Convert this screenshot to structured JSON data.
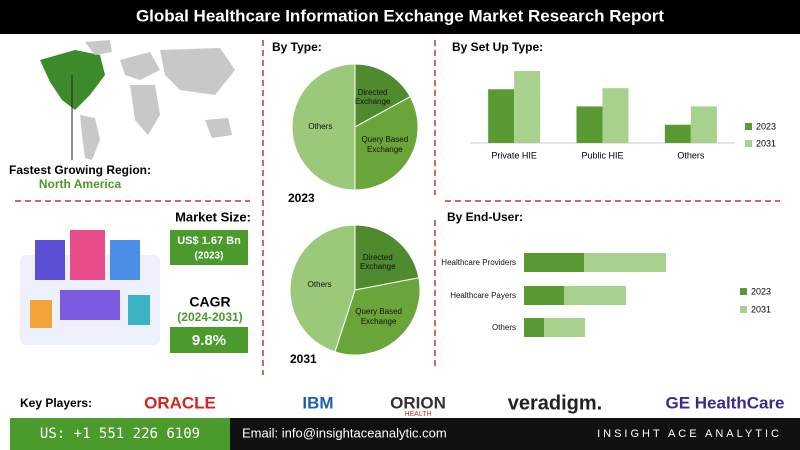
{
  "header": {
    "title": "Global Healthcare Information Exchange Market Research Report"
  },
  "region": {
    "label": "Fastest Growing Region:",
    "value": "North America"
  },
  "market_size": {
    "label": "Market Size:",
    "value": "US$ 1.67 Bn",
    "year": "(2023)"
  },
  "cagr": {
    "label": "CAGR",
    "period": "(2024-2031)",
    "value": "9.8%"
  },
  "key_players": {
    "label": "Key Players:",
    "logos": [
      {
        "name": "ORACLE"
      },
      {
        "name": "IBM"
      },
      {
        "name": "ORION",
        "sub": "HEALTH"
      },
      {
        "name": "veradigm."
      },
      {
        "name": "GE HealthCare"
      }
    ]
  },
  "footer": {
    "phone": "US: +1 551 226 6109",
    "email": "Email: info@insightaceanalytic.com",
    "brand": "INSIGHT ACE ANALYTIC"
  },
  "chart_data": [
    {
      "type": "pie",
      "title": "By Type:",
      "subtitle": "2023",
      "categories": [
        "Directed Exchange",
        "Query Based Exchange",
        "Others"
      ],
      "values": [
        17,
        33,
        50
      ],
      "colors": [
        "#4f8a2e",
        "#6aa53a",
        "#9cc87a"
      ]
    },
    {
      "type": "pie",
      "subtitle": "2031",
      "categories": [
        "Directed Exchange",
        "Query Based Exchange",
        "Others"
      ],
      "values": [
        22,
        33,
        45
      ],
      "colors": [
        "#4f8a2e",
        "#6aa53a",
        "#9cc87a"
      ]
    },
    {
      "type": "bar",
      "title": "By Set Up Type:",
      "categories": [
        "Private HIE",
        "Public HIE",
        "Others"
      ],
      "ylim": [
        0,
        70
      ],
      "legend": "right",
      "series": [
        {
          "name": "2023",
          "color": "#5a9a32",
          "values": [
            47,
            32,
            16
          ]
        },
        {
          "name": "2031",
          "color": "#a8d18d",
          "values": [
            63,
            48,
            32
          ]
        }
      ]
    },
    {
      "type": "stacked_barh",
      "title": "By End-User:",
      "categories": [
        "Healthcare Providers",
        "Healthcare Payers",
        "Others"
      ],
      "xlim": [
        0,
        160
      ],
      "legend": "right",
      "series": [
        {
          "name": "2023",
          "color": "#5a9a32",
          "values": [
            60,
            40,
            20
          ]
        },
        {
          "name": "2031",
          "color": "#a8d18d",
          "values": [
            82,
            62,
            41
          ]
        }
      ]
    }
  ]
}
